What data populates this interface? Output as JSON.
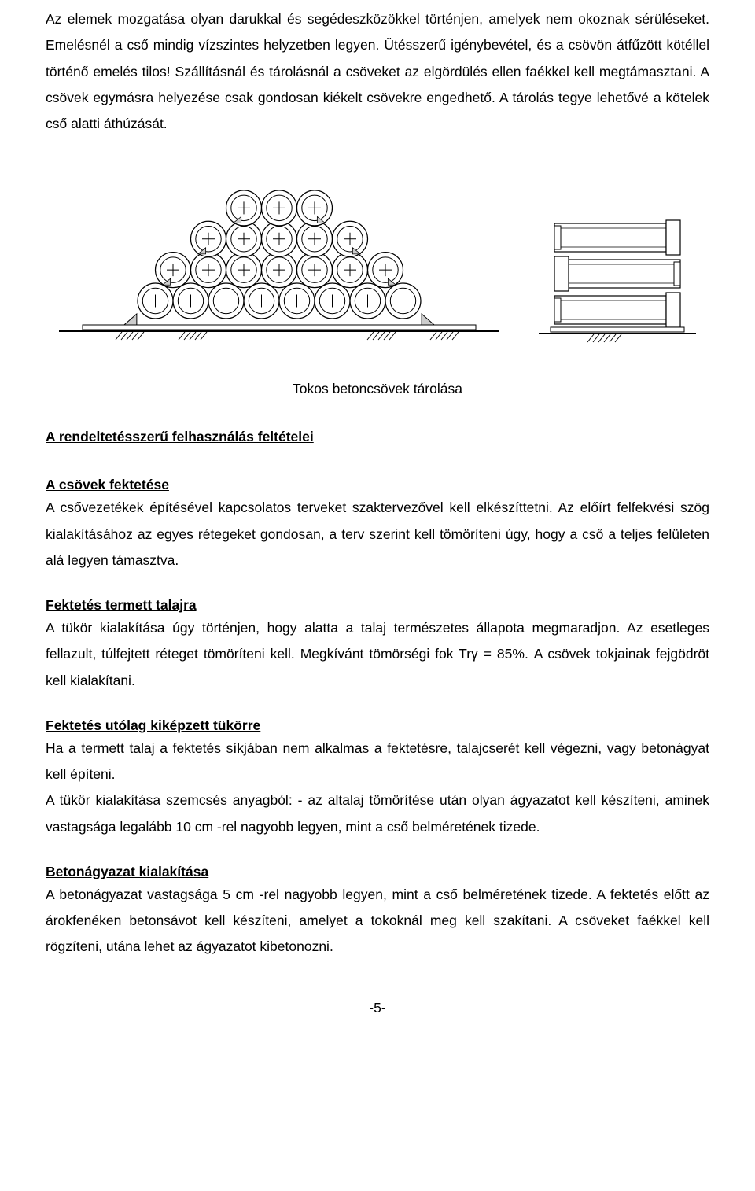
{
  "intro": {
    "paragraph": "Az elemek mozgatása olyan darukkal és segédeszközökkel történjen, amelyek nem okoznak sérüléseket. Emelésnél a cső mindig vízszintes helyzetben legyen.  Ütésszerű igénybevétel, és a csövön átfűzött kötéllel történő emelés tilos! Szállításnál és tárolásnál a csöveket az elgördülés ellen faékkel kell megtámasztani.  A csövek egymásra helyezése csak gondosan kiékelt csövekre engedhető.  A tárolás tegye lehetővé a kötelek cső alatti áthúzását."
  },
  "figure": {
    "caption": "Tokos betoncsövek tárolása",
    "front": {
      "rows": [
        3,
        5,
        7,
        8
      ],
      "circle_r": 22.5,
      "stroke": "#000000",
      "fill": "#ffffff",
      "cross_len": 8,
      "base_width": 560,
      "wedge_fill": "#cccccc",
      "ground_stroke": "#000000"
    },
    "side": {
      "count": 3,
      "stroke": "#000000",
      "fill": "#ffffff",
      "pipe_w": 160,
      "pipe_h": 44,
      "socket_w": 18,
      "socket_extra": 8
    }
  },
  "sections": {
    "main_title": "A rendeltetésszerű felhasználás feltételei",
    "s1": {
      "title": "A csövek fektetése",
      "text": "A csővezetékek építésével kapcsolatos terveket szaktervezővel kell elkészíttetni.  Az előírt felfekvési szög kialakításához az egyes rétegeket gondosan, a terv szerint kell tömöríteni úgy, hogy a cső a teljes felületen alá legyen támasztva."
    },
    "s2": {
      "title": "Fektetés termett talajra",
      "text": "A tükör kialakítása úgy történjen, hogy alatta a talaj természetes állapota megmaradjon.  Az esetleges fellazult, túlfejtett réteget tömöríteni kell.  Megkívánt tömörségi fok Trγ  = 85%. A csövek tokjainak fejgödröt kell kialakítani."
    },
    "s3": {
      "title": "Fektetés utólag kiképzett tükörre",
      "text1": "Ha a termett talaj a fektetés síkjában nem alkalmas a fektetésre, talajcserét kell végezni, vagy betonágyat kell építeni.",
      "text2": "A tükör kialakítása szemcsés anyagból:  - az altalaj tömörítése után olyan ágyazatot kell készíteni, aminek  vastagsága  legalább 10 cm -rel nagyobb legyen, mint a cső belméretének tizede."
    },
    "s4": {
      "title": "Betonágyazat kialakítása",
      "text": "A betonágyazat vastagsága 5 cm -rel nagyobb legyen, mint a cső belméretének tizede. A fektetés előtt az árokfenéken betonsávot kell készíteni, amelyet a tokoknál meg kell szakítani.  A csöveket faékkel kell rögzíteni, utána lehet az ágyazatot kibetonozni."
    }
  },
  "page_number": "-5-"
}
